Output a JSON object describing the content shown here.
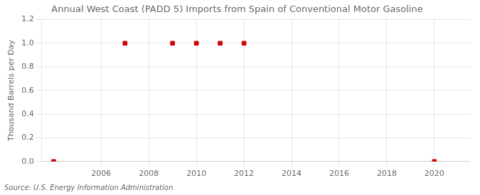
{
  "chart_data": {
    "type": "scatter",
    "title": "Annual West Coast (PADD 5) Imports from Spain of Conventional Motor Gasoline",
    "ylabel": "Thousand Barrels per Day",
    "annotations": [
      "Source: U.S. Energy Information Administration"
    ],
    "x": [
      2004,
      2007,
      2009,
      2010,
      2011,
      2012,
      2020
    ],
    "values": [
      0.0,
      1.0,
      1.0,
      1.0,
      1.0,
      1.0,
      0.0
    ],
    "color": "#cc0000",
    "marker": "square",
    "xlim": [
      2003.5,
      2021.5
    ],
    "xticks": [
      2006,
      2008,
      2010,
      2012,
      2014,
      2016,
      2018,
      2020
    ],
    "ylim": [
      0.0,
      1.2
    ],
    "yticks": [
      {
        "value": 0.0,
        "label": "0.0"
      },
      0.2,
      0.4,
      0.6,
      0.8,
      {
        "value": 1.0,
        "label": "1.0"
      },
      1.2
    ],
    "grid": true
  }
}
